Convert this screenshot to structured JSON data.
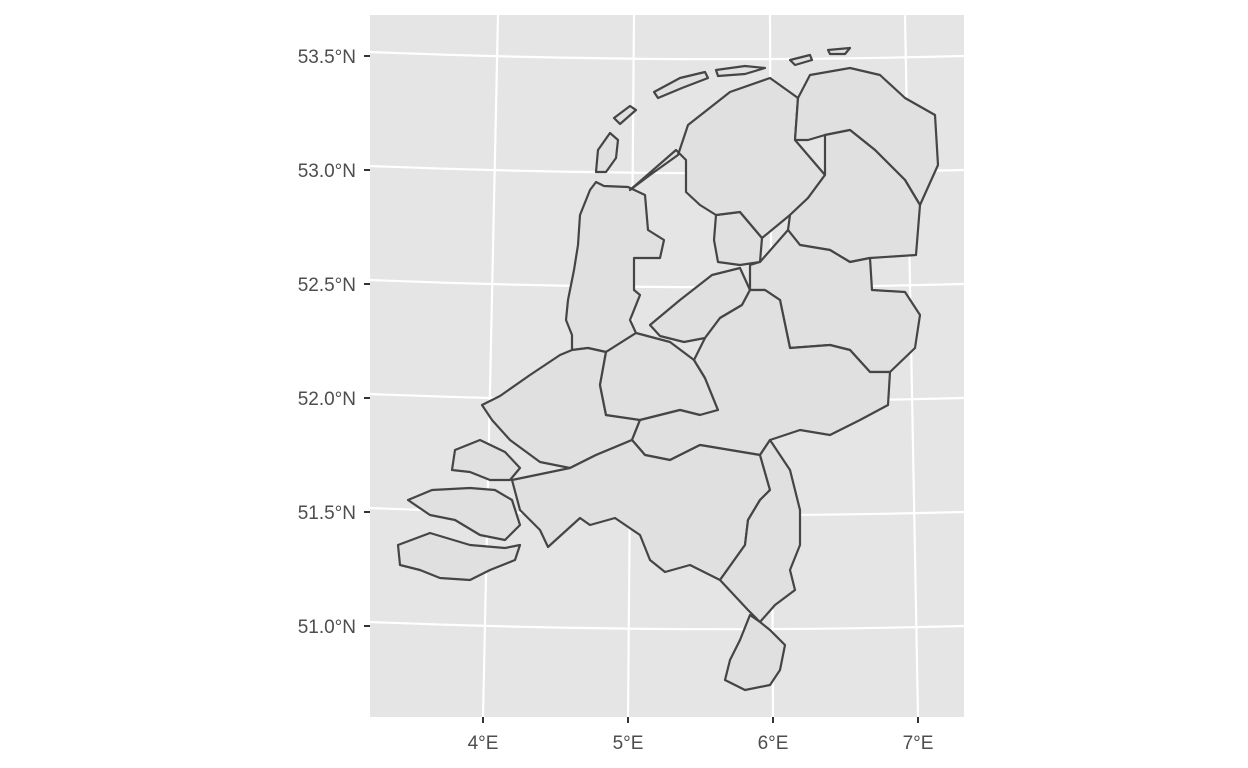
{
  "map": {
    "title": "",
    "colors": {
      "panel_bg": "#e5e5e5",
      "grid": "#ffffff",
      "region_fill": "#e0e0e0",
      "region_stroke": "#454545",
      "tick_text": "#4d4d4d"
    },
    "lat_ticks": [
      "53.5°N",
      "53.0°N",
      "52.5°N",
      "52.0°N",
      "51.5°N",
      "51.0°N"
    ],
    "lon_ticks": [
      "4°E",
      "5°E",
      "6°E",
      "7°E"
    ],
    "lat_values": [
      53.5,
      53.0,
      52.5,
      52.0,
      51.5,
      51.0
    ],
    "lon_values": [
      4,
      5,
      6,
      7
    ],
    "regions": [
      "Groningen",
      "Friesland",
      "Drenthe",
      "Overijssel",
      "Flevoland",
      "Gelderland",
      "Utrecht",
      "Noord-Holland",
      "Zuid-Holland",
      "Zeeland",
      "Noord-Brabant",
      "Limburg"
    ]
  }
}
